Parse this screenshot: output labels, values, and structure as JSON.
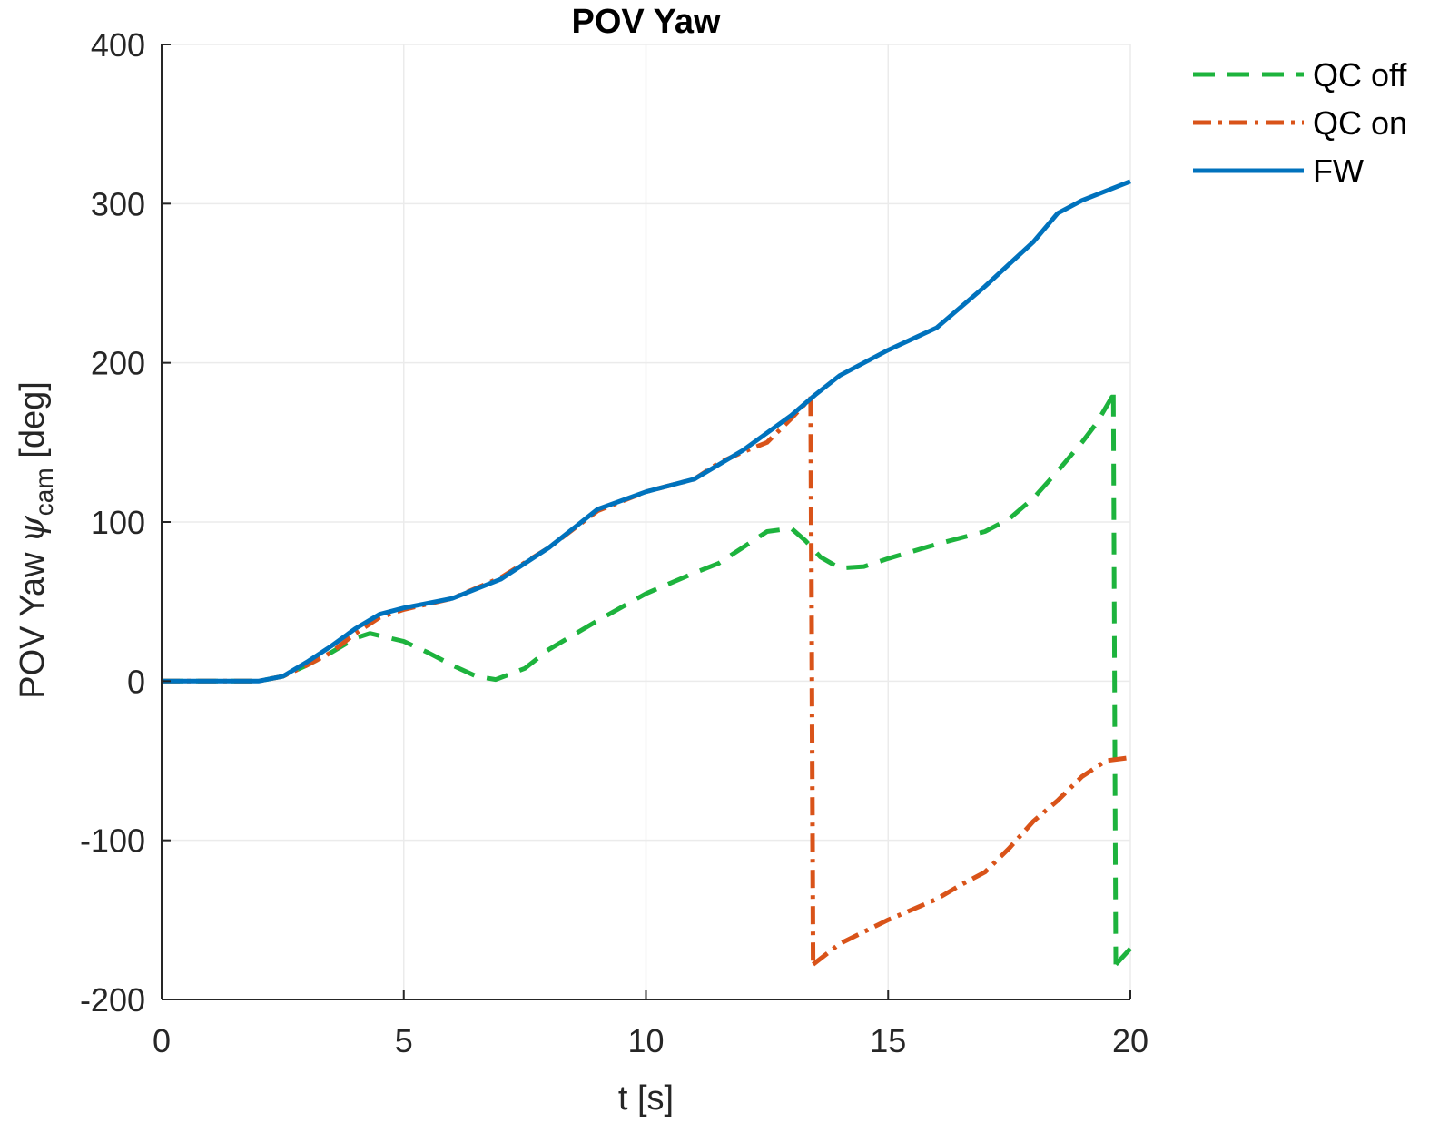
{
  "chart_data": {
    "type": "line",
    "title": "POV Yaw",
    "xlabel": "t [s]",
    "ylabel": {
      "main": "POV Yaw ",
      "symbol": "ψ",
      "subscript": "cam",
      "unit": " [deg]"
    },
    "xlim": [
      0,
      20
    ],
    "ylim": [
      -200,
      400
    ],
    "xticks": [
      0,
      5,
      10,
      15,
      20
    ],
    "xtick_labels": [
      "0",
      "5",
      "10",
      "15",
      "20"
    ],
    "yticks": [
      -200,
      -100,
      0,
      100,
      200,
      300,
      400
    ],
    "ytick_labels": [
      "-200",
      "-100",
      "0",
      "100",
      "200",
      "300",
      "400"
    ],
    "grid": true,
    "legend_position": "outside-top-right",
    "series": [
      {
        "name": "QC off",
        "color": "#1db33d",
        "dash": "dashed",
        "segments": [
          [
            [
              0,
              0
            ],
            [
              2,
              0
            ],
            [
              2.5,
              3
            ],
            [
              3,
              10
            ],
            [
              3.5,
              18
            ],
            [
              4,
              27
            ],
            [
              4.3,
              30
            ],
            [
              5,
              25
            ],
            [
              5.5,
              18
            ],
            [
              6,
              10
            ],
            [
              6.5,
              3
            ],
            [
              6.9,
              1
            ],
            [
              7.5,
              8
            ],
            [
              8,
              20
            ],
            [
              9,
              38
            ],
            [
              10,
              55
            ],
            [
              11,
              68
            ],
            [
              11.5,
              74
            ],
            [
              12,
              84
            ],
            [
              12.5,
              94
            ],
            [
              13,
              96
            ],
            [
              13.3,
              88
            ],
            [
              13.6,
              78
            ],
            [
              14,
              71
            ],
            [
              14.5,
              72
            ],
            [
              15,
              77
            ],
            [
              16,
              86
            ],
            [
              17,
              94
            ],
            [
              17.5,
              102
            ],
            [
              18,
              115
            ],
            [
              18.5,
              132
            ],
            [
              19,
              150
            ],
            [
              19.3,
              162
            ],
            [
              19.65,
              180
            ]
          ],
          [
            [
              19.65,
              180
            ],
            [
              19.7,
              -178
            ]
          ],
          [
            [
              19.7,
              -178
            ],
            [
              20,
              -168
            ]
          ]
        ]
      },
      {
        "name": "QC on",
        "color": "#d95319",
        "dash": "dashdot",
        "segments": [
          [
            [
              0,
              0
            ],
            [
              2,
              0
            ],
            [
              2.5,
              3
            ],
            [
              3,
              10
            ],
            [
              3.5,
              18
            ],
            [
              4,
              30
            ],
            [
              4.5,
              40
            ],
            [
              5,
              45
            ],
            [
              6,
              52
            ],
            [
              7,
              65
            ],
            [
              8,
              84
            ],
            [
              9,
              107
            ],
            [
              10,
              119
            ],
            [
              11,
              127
            ],
            [
              11.5,
              137
            ],
            [
              12,
              144
            ],
            [
              12.5,
              150
            ],
            [
              13,
              165
            ],
            [
              13.4,
              178
            ]
          ],
          [
            [
              13.4,
              178
            ],
            [
              13.45,
              -178
            ]
          ],
          [
            [
              13.45,
              -178
            ],
            [
              14,
              -165
            ],
            [
              15,
              -150
            ],
            [
              16,
              -137
            ],
            [
              16.5,
              -128
            ],
            [
              17,
              -120
            ],
            [
              17.5,
              -105
            ],
            [
              18,
              -88
            ],
            [
              18.5,
              -75
            ],
            [
              19,
              -60
            ],
            [
              19.5,
              -50
            ],
            [
              20,
              -48
            ]
          ]
        ]
      },
      {
        "name": "FW",
        "color": "#0072bd",
        "dash": "solid",
        "segments": [
          [
            [
              0,
              0
            ],
            [
              2,
              0
            ],
            [
              2.5,
              3
            ],
            [
              3,
              12
            ],
            [
              3.5,
              22
            ],
            [
              4,
              33
            ],
            [
              4.5,
              42
            ],
            [
              5,
              46
            ],
            [
              6,
              52
            ],
            [
              7,
              64
            ],
            [
              8,
              84
            ],
            [
              9,
              108
            ],
            [
              10,
              119
            ],
            [
              11,
              127
            ],
            [
              12,
              145
            ],
            [
              13,
              167
            ],
            [
              13.5,
              180
            ],
            [
              14,
              192
            ],
            [
              15,
              208
            ],
            [
              16,
              222
            ],
            [
              17,
              248
            ],
            [
              18,
              276
            ],
            [
              18.5,
              294
            ],
            [
              19,
              302
            ],
            [
              20,
              314
            ]
          ]
        ]
      }
    ]
  }
}
